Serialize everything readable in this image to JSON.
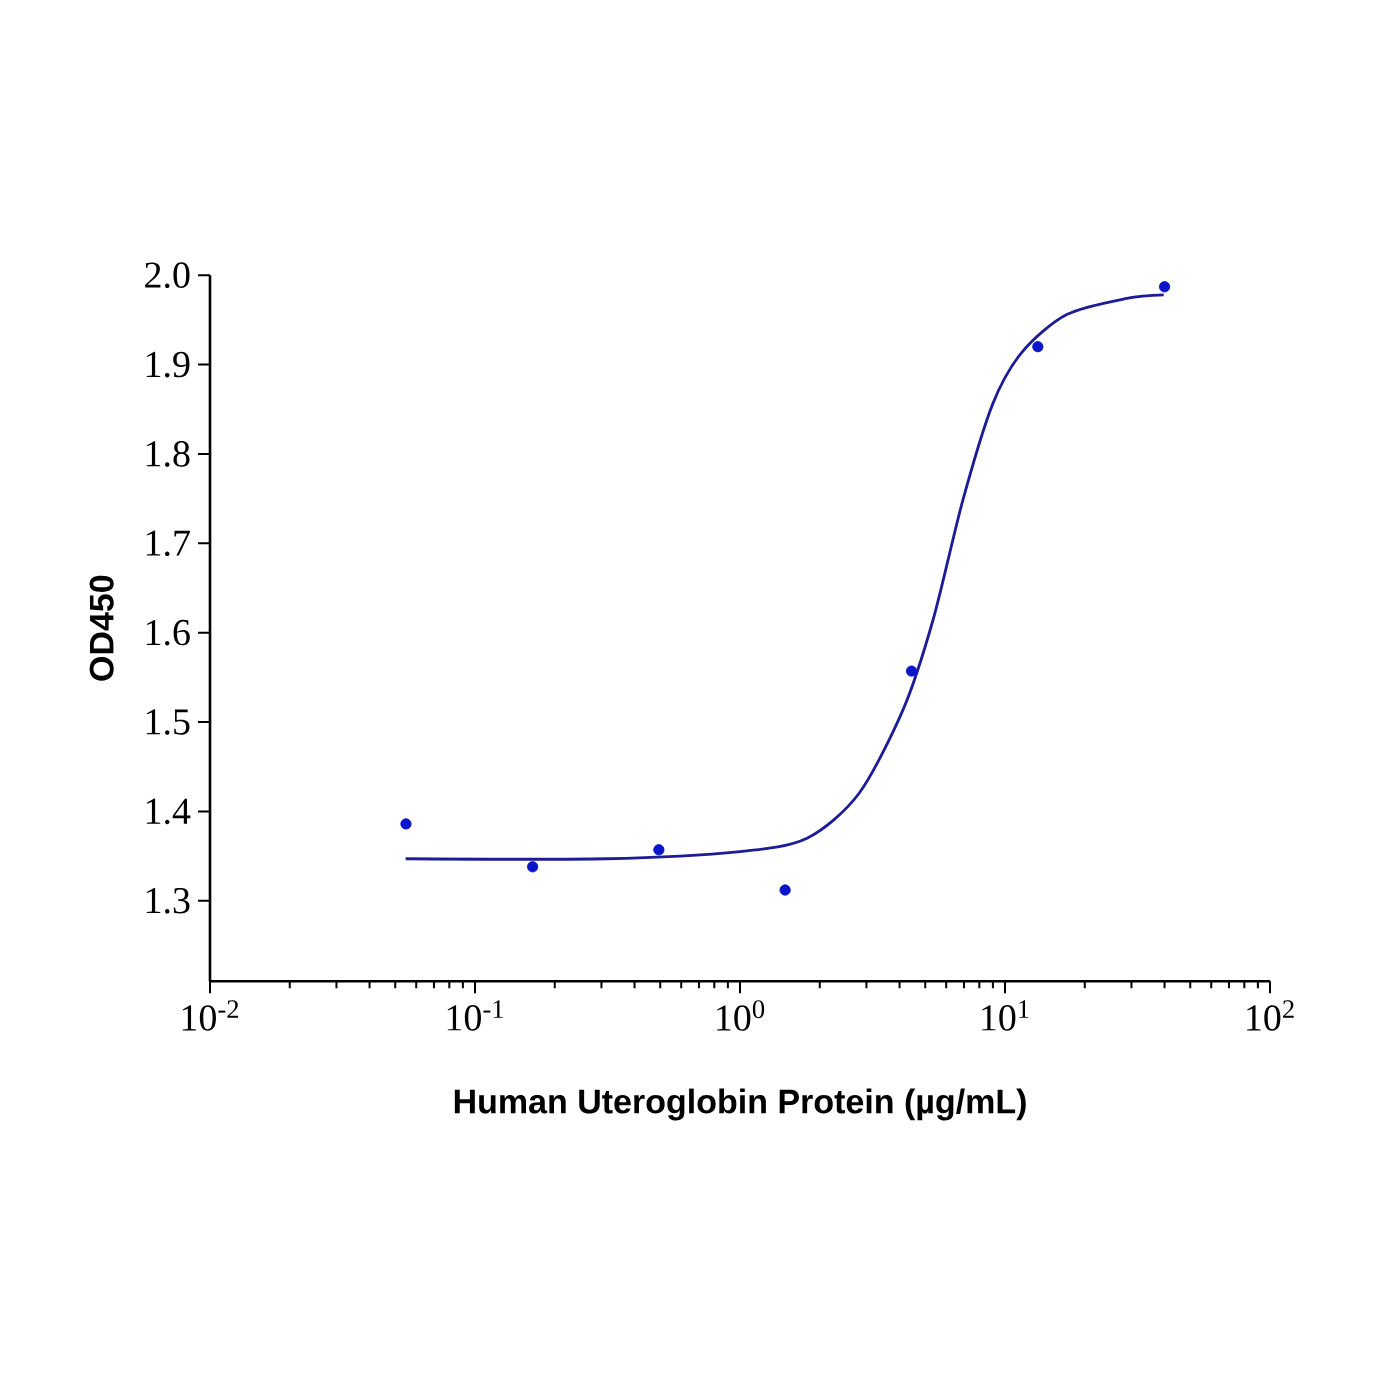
{
  "chart_data": {
    "type": "scatter",
    "xlabel": "Human Uteroglobin Protein (µg/mL)",
    "ylabel": "OD450",
    "series": [
      {
        "color": "#0a14c8",
        "marker": "circle",
        "x": [
          0.0549,
          0.165,
          0.494,
          1.48,
          4.44,
          13.3,
          40
        ],
        "values": [
          1.386,
          1.338,
          1.357,
          1.312,
          1.557,
          1.92,
          1.987
        ]
      },
      {
        "type": "line",
        "color": "#1c1c96",
        "marker": "none",
        "line_style": "solid",
        "x": [
          0.0547,
          0.313,
          1.0,
          1.79,
          2.81,
          4.14,
          5.36,
          6.93,
          8.99,
          11.6,
          17.1,
          28.8,
          39.7
        ],
        "values": [
          1.347,
          1.347,
          1.355,
          1.37,
          1.42,
          1.515,
          1.615,
          1.748,
          1.856,
          1.914,
          1.956,
          1.974,
          1.978
        ]
      }
    ],
    "log": "x",
    "xlim": [
      0.01,
      100
    ],
    "xticks": [
      {
        "value": 0.01,
        "label": "10$^{-2}$"
      },
      {
        "value": 0.1,
        "label": "10$^{-1}$"
      },
      {
        "value": 1,
        "label": "10$^{0}$"
      },
      {
        "value": 10,
        "label": "10$^{1}$"
      },
      {
        "value": 100,
        "label": "10$^{2}$"
      }
    ],
    "ylim": [
      1.21,
      2.0
    ],
    "yticks": [
      1.3,
      1.4,
      1.5,
      1.6,
      1.7,
      1.8,
      1.9,
      {
        "value": 2.0,
        "label": "2.0"
      }
    ]
  }
}
